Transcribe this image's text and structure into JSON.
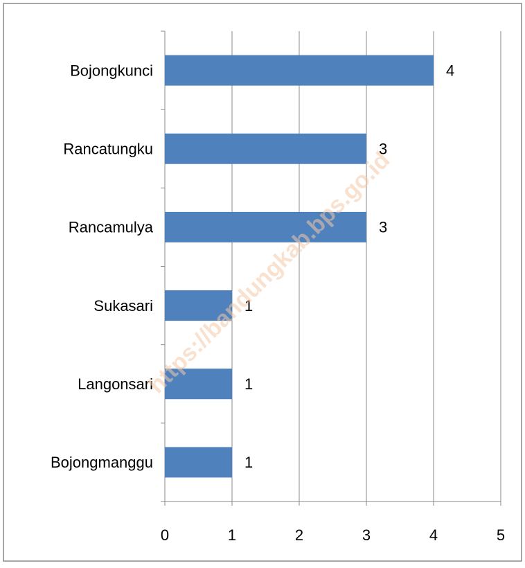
{
  "chart_data": {
    "type": "bar",
    "orientation": "horizontal",
    "categories": [
      "Bojongkunci",
      "Rancatungku",
      "Rancamulya",
      "Sukasari",
      "Langonsari",
      "Bojongmanggu"
    ],
    "values": [
      4,
      3,
      3,
      1,
      1,
      1
    ],
    "color": "#4f81bd",
    "xlim": [
      0,
      5
    ],
    "xticks": [
      0,
      1,
      2,
      3,
      4,
      5
    ],
    "grid": true,
    "watermark": "https://bandungkab.bps.go.id"
  }
}
